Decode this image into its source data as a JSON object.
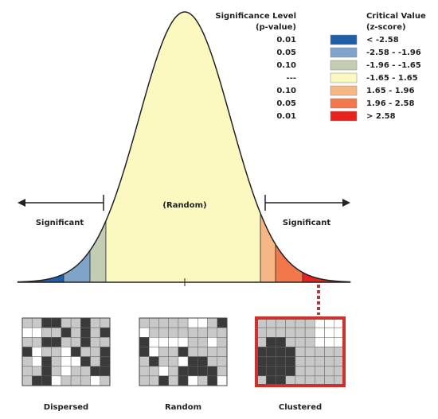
{
  "legend": {
    "header_p": [
      "Significance Level",
      "(p-value)"
    ],
    "header_z": [
      "Critical Value",
      "(z-score)"
    ],
    "rows": [
      {
        "p": "0.01",
        "z": "< -2.58",
        "color": "#1f5fa8"
      },
      {
        "p": "0.05",
        "z": "-2.58 - -1.96",
        "color": "#7fa3c9"
      },
      {
        "p": "0.10",
        "z": "-1.96 - -1.65",
        "color": "#c2cdb4"
      },
      {
        "p": "---",
        "z": "-1.65 - 1.65",
        "color": "#fbf9c0"
      },
      {
        "p": "0.10",
        "z": "1.65 - 1.96",
        "color": "#f7b785"
      },
      {
        "p": "0.05",
        "z": "1.96 - 2.58",
        "color": "#f2774b"
      },
      {
        "p": "0.01",
        "z": "> 2.58",
        "color": "#e8231e"
      }
    ]
  },
  "curve": {
    "center_label": "(Random)",
    "left_label": "Significant",
    "right_label": "Significant"
  },
  "maps": [
    {
      "caption": "Dispersed"
    },
    {
      "caption": "Random"
    },
    {
      "caption": "Clustered"
    }
  ]
}
